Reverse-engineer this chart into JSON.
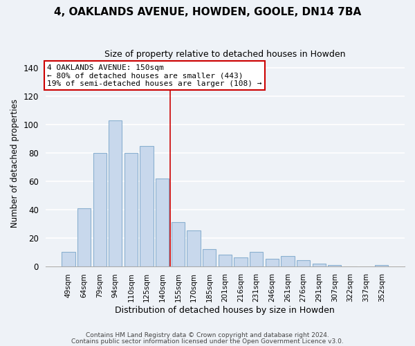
{
  "title": "4, OAKLANDS AVENUE, HOWDEN, GOOLE, DN14 7BA",
  "subtitle": "Size of property relative to detached houses in Howden",
  "xlabel": "Distribution of detached houses by size in Howden",
  "ylabel": "Number of detached properties",
  "bar_labels": [
    "49sqm",
    "64sqm",
    "79sqm",
    "94sqm",
    "110sqm",
    "125sqm",
    "140sqm",
    "155sqm",
    "170sqm",
    "185sqm",
    "201sqm",
    "216sqm",
    "231sqm",
    "246sqm",
    "261sqm",
    "276sqm",
    "291sqm",
    "307sqm",
    "322sqm",
    "337sqm",
    "352sqm"
  ],
  "bar_heights": [
    10,
    41,
    80,
    103,
    80,
    85,
    62,
    31,
    25,
    12,
    8,
    6,
    10,
    5,
    7,
    4,
    2,
    1,
    0,
    0,
    1
  ],
  "bar_color": "#c8d8ec",
  "bar_edge_color": "#8ab0d0",
  "vline_color": "#cc0000",
  "annotation_title": "4 OAKLANDS AVENUE: 150sqm",
  "annotation_line1": "← 80% of detached houses are smaller (443)",
  "annotation_line2": "19% of semi-detached houses are larger (108) →",
  "annotation_box_color": "#ffffff",
  "annotation_box_edge_color": "#cc0000",
  "ylim": [
    0,
    145
  ],
  "yticks": [
    0,
    20,
    40,
    60,
    80,
    100,
    120,
    140
  ],
  "bg_color": "#eef2f7",
  "grid_color": "#ffffff",
  "footer1": "Contains HM Land Registry data © Crown copyright and database right 2024.",
  "footer2": "Contains public sector information licensed under the Open Government Licence v3.0."
}
